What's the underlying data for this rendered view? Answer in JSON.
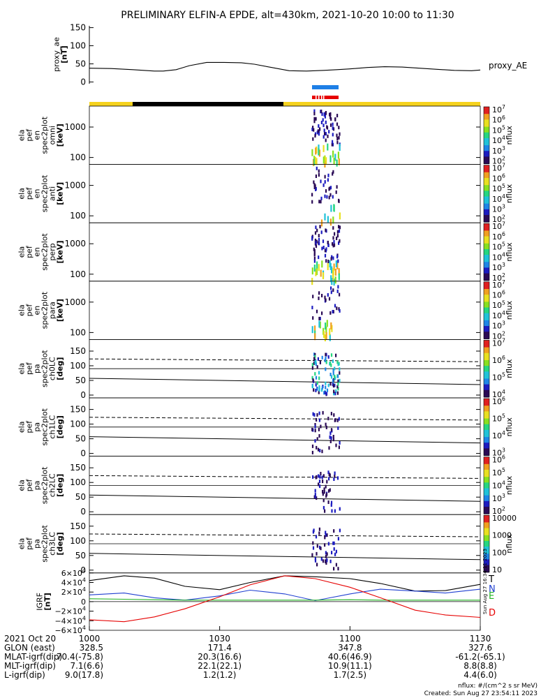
{
  "title": "PRELIMINARY ELFIN-A EPDE, alt=430km, 2021-10-20 10:00 to 11:30",
  "colors": {
    "orbit_day": "#f5d21e",
    "orbit_night": "#000000",
    "bar_blue": "#1e7fe6",
    "bar_red": "#e60000",
    "igrf_T": "#000000",
    "igrf_N": "#1f3fd0",
    "igrf_E": "#22b422",
    "igrf_D": "#e60000"
  },
  "chart_data": {
    "type": "multi-panel",
    "x_range_minutes": [
      0,
      90
    ],
    "x_ticks": [
      "1000",
      "1030",
      "1100",
      "1130"
    ],
    "panels": [
      {
        "id": "proxy_ae",
        "type": "line",
        "ylabel": "proxy_ae\n[nT]",
        "series_label": "proxy_AE",
        "ylim": [
          -5,
          155
        ],
        "yticks": [
          "150",
          "100",
          "50",
          "0"
        ],
        "x": [
          0,
          5,
          10,
          15,
          17,
          20,
          23,
          27,
          31,
          35,
          38,
          42,
          46,
          50,
          54,
          57,
          60,
          64,
          68,
          72,
          76,
          80,
          84,
          88,
          90
        ],
        "values": [
          38,
          37,
          34,
          30,
          30,
          34,
          45,
          54,
          54,
          53,
          49,
          40,
          31,
          30,
          32,
          34,
          36,
          40,
          42,
          41,
          38,
          35,
          32,
          31,
          33
        ]
      },
      {
        "id": "omni",
        "type": "spectrogram",
        "ylabel": "ela\npef\nen\nspec2plot\nomni\n[keV]",
        "yticks": [
          "1000",
          "100"
        ],
        "cbar_label": "nflux",
        "cbar_ticks": [
          "10^7",
          "10^6",
          "10^5",
          "10^4",
          "10^3",
          "10^2"
        ]
      },
      {
        "id": "anti",
        "type": "spectrogram",
        "ylabel": "ela\npef\nen\nspec2plot\nanti\n[keV]",
        "yticks": [
          "1000",
          "100"
        ],
        "cbar_label": "nflux",
        "cbar_ticks": [
          "10^7",
          "10^6",
          "10^5",
          "10^4",
          "10^3",
          "10^2"
        ]
      },
      {
        "id": "perp",
        "type": "spectrogram",
        "ylabel": "ela\npef\nen\nspec2plot\nperp\n[keV]",
        "yticks": [
          "1000",
          "100"
        ],
        "cbar_label": "nflux",
        "cbar_ticks": [
          "10^7",
          "10^6",
          "10^5",
          "10^4",
          "10^3",
          "10^2"
        ]
      },
      {
        "id": "para",
        "type": "spectrogram",
        "ylabel": "ela\npef\nen\nspec2plot\npara\n[keV]",
        "yticks": [
          "1000",
          "100"
        ],
        "cbar_label": "nflux",
        "cbar_ticks": [
          "10^7",
          "10^6",
          "10^5",
          "10^4",
          "10^3",
          "10^2"
        ]
      },
      {
        "id": "ch0LC",
        "type": "spectrogram",
        "ylabel": "ela\npef\npa\nspec2plot\nch0LC\n[deg]",
        "yticks": [
          "150",
          "100",
          "50",
          "0"
        ],
        "cbar_label": "nflux",
        "cbar_ticks": [
          "10^7",
          "10^6",
          "10^5",
          "10^4"
        ]
      },
      {
        "id": "ch1LC",
        "type": "spectrogram",
        "ylabel": "ela\npef\npa\nspec2plot\nch1LC\n[deg]",
        "yticks": [
          "150",
          "100",
          "50",
          "0"
        ],
        "cbar_label": "nflux",
        "cbar_ticks": [
          "10^6",
          "10^5",
          "10^4",
          "10^3"
        ]
      },
      {
        "id": "ch2LC",
        "type": "spectrogram",
        "ylabel": "ela\npef\npa\nspec2plot\nch2LC\n[deg]",
        "yticks": [
          "150",
          "100",
          "50",
          "0"
        ],
        "cbar_label": "nflux",
        "cbar_ticks": [
          "10^6",
          "10^5",
          "10^4",
          "10^3",
          "10^2"
        ]
      },
      {
        "id": "ch3LC",
        "type": "spectrogram",
        "ylabel": "ela\npef\npa\nspec2plot\nch3LC\n[deg]",
        "yticks": [
          "150",
          "100",
          "50",
          "0"
        ],
        "cbar_label": "nflux",
        "cbar_ticks": [
          "10000",
          "1000",
          "100",
          "10"
        ]
      },
      {
        "id": "igrf",
        "type": "line",
        "ylabel": "IGRF\n[nT]",
        "yticks": [
          "6×10^4",
          "4×10^4",
          "2×10^4",
          "0",
          "−2×10^4",
          "−4×10^4",
          "−6×10^4"
        ],
        "ylim": [
          -60000,
          60000
        ],
        "x": [
          0,
          8,
          15,
          22,
          30,
          37,
          45,
          52,
          60,
          67,
          75,
          82,
          90
        ],
        "series": [
          {
            "name": "T",
            "values": [
              44000,
              54000,
              49000,
              32000,
              25000,
              40000,
              54000,
              52000,
              48000,
              38000,
              22000,
              23000,
              36000
            ]
          },
          {
            "name": "N",
            "values": [
              14000,
              18000,
              8000,
              3000,
              12000,
              24000,
              16000,
              2000,
              16000,
              26000,
              22000,
              18000,
              26000
            ]
          },
          {
            "name": "E",
            "values": [
              6000,
              5000,
              4000,
              3000,
              3000,
              3000,
              3000,
              3000,
              4000,
              3000,
              3000,
              3000,
              3000
            ]
          },
          {
            "name": "D",
            "values": [
              -38000,
              -42000,
              -32000,
              -15000,
              10000,
              35000,
              54000,
              48000,
              30000,
              8000,
              -18000,
              -28000,
              -33000
            ]
          }
        ]
      }
    ]
  },
  "ephemeris": {
    "label_date": "2021 Oct 20",
    "rows": [
      {
        "label": "GLON (east)",
        "values": [
          "328.5",
          "171.4",
          "347.8",
          "327.6"
        ]
      },
      {
        "label": "MLAT-igrf(dip)",
        "values": [
          "70.4(-75.8)",
          "20.3(16.6)",
          "40.6(46.9)",
          "-61.2(-65.1)"
        ]
      },
      {
        "label": "MLT-igrf(dip)",
        "values": [
          "7.1(6.6)",
          "22.1(22.1)",
          "10.9(11.1)",
          "8.8(8.8)"
        ]
      },
      {
        "label": "L-igrf(dip)",
        "values": [
          "9.0(17.8)",
          "1.2(1.2)",
          "1.7(2.5)",
          "4.4(6.0)"
        ]
      }
    ]
  },
  "footer": {
    "nflux_units": "nflux: #/(cm^2 s sr MeV)",
    "created": "Created: Sun Aug 27 23:54:11 2023",
    "side_stamp": "Sun Aug 27 16:34:11 2023"
  }
}
